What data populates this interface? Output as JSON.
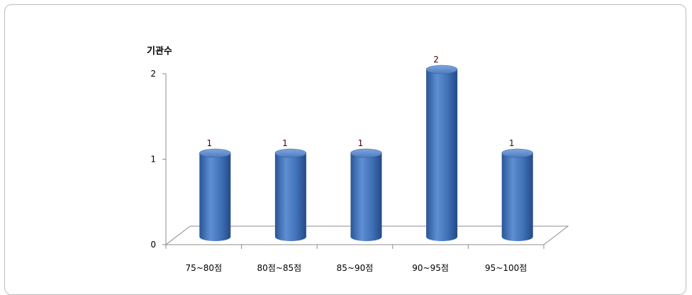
{
  "chart_data": {
    "type": "bar",
    "title": "",
    "ylabel": "기관수",
    "xlabel": "",
    "categories": [
      "75~80점",
      "80점~85점",
      "85~90점",
      "90~95점",
      "95~100점"
    ],
    "values": [
      1,
      1,
      1,
      2,
      1
    ],
    "data_labels": [
      "1",
      "1",
      "1",
      "2",
      "1"
    ],
    "yticks": [
      "0",
      "1",
      "2"
    ],
    "ylim": [
      0,
      2
    ],
    "grid": false,
    "legend": "none",
    "bar_color": "#3f6fb5",
    "bar_style": "3d-cylinder"
  }
}
